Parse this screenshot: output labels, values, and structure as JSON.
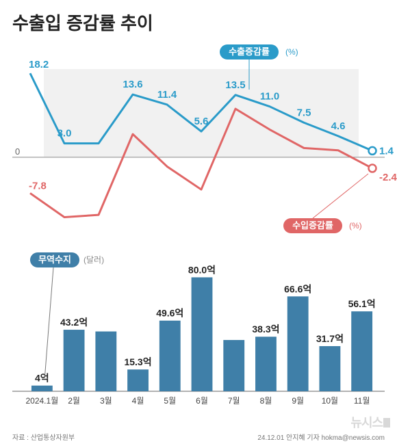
{
  "title": "수출입 증감률 추이",
  "line_chart": {
    "type": "line",
    "months": [
      "2024.1월",
      "2월",
      "3월",
      "4월",
      "5월",
      "6월",
      "7월",
      "8월",
      "9월",
      "10월",
      "11월"
    ],
    "export": {
      "label": "수출증감률",
      "unit": "(%)",
      "color": "#2a9bc9",
      "values": [
        18.2,
        3.0,
        3.0,
        13.6,
        11.4,
        5.6,
        13.5,
        11.0,
        7.5,
        4.6,
        1.4
      ],
      "shown_labels": {
        "0": "18.2",
        "1": "3.0",
        "3": "13.6",
        "4": "11.4",
        "5": "5.6",
        "6": "13.5",
        "7": "11.0",
        "8": "7.5",
        "9": "4.6",
        "10": "1.4"
      }
    },
    "import": {
      "label": "수입증감률",
      "unit": "(%)",
      "color": "#e06666",
      "values": [
        -7.8,
        -13.0,
        -12.5,
        5.0,
        -2.0,
        -7.0,
        10.5,
        6.0,
        2.0,
        1.5,
        -2.4
      ],
      "shown_labels": {
        "0": "-7.8",
        "10": "-2.4"
      }
    },
    "ymin": -15,
    "ymax": 20,
    "zero_label": "0",
    "plot_bg": "#f1f1f1",
    "line_width": 3,
    "marker_radius": 5.5
  },
  "bar_chart": {
    "type": "bar",
    "label": "무역수지",
    "unit": "(달러)",
    "color": "#3f7fa8",
    "badge_bg": "#3f7fa8",
    "months": [
      "2024.1월",
      "2월",
      "3월",
      "4월",
      "5월",
      "6월",
      "7월",
      "8월",
      "9월",
      "10월",
      "11월"
    ],
    "values": [
      4,
      43.2,
      42.0,
      15.3,
      49.6,
      80.0,
      36.0,
      38.3,
      66.6,
      31.7,
      56.1
    ],
    "shown_labels": [
      "4억",
      "43.2억",
      "",
      "15.3억",
      "49.6억",
      "80.0억",
      "",
      "38.3억",
      "66.6억",
      "31.7억",
      "56.1억"
    ],
    "ymax": 85
  },
  "footer": {
    "source": "자료 : 산업통상자원부",
    "credit": "24.12.01  안지혜 기자  hokma@newsis.com"
  },
  "watermark": "뉴시스"
}
